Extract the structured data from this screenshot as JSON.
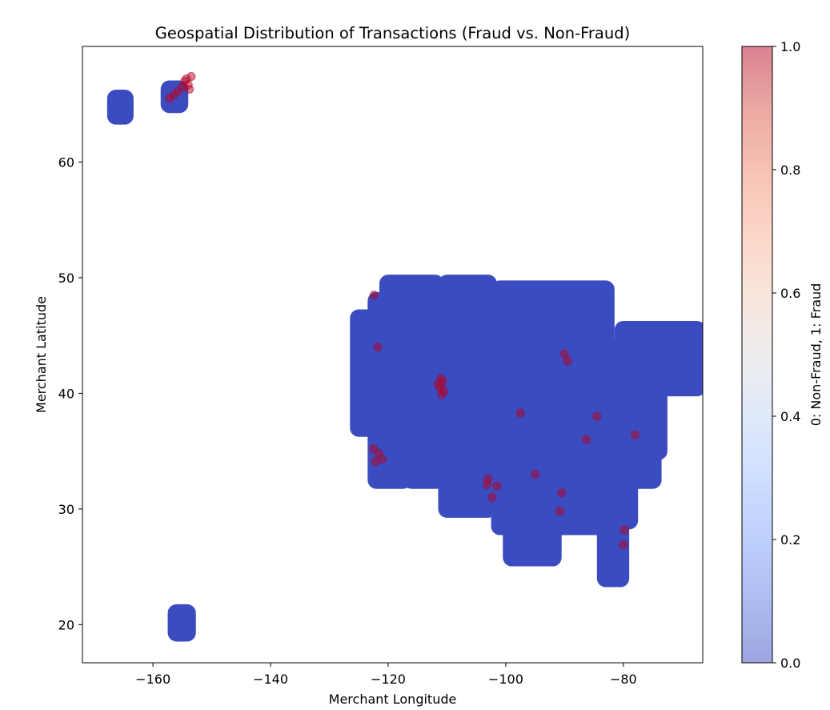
{
  "chart_data": {
    "type": "scatter",
    "title": "Geospatial Distribution of Transactions (Fraud vs. Non-Fraud)",
    "xlabel": "Merchant Longitude",
    "ylabel": "Merchant Latitude",
    "xlim": [
      -172,
      -66.5
    ],
    "ylim": [
      16.7,
      70
    ],
    "xticks": [
      -160,
      -140,
      -120,
      -100,
      -80
    ],
    "xtick_labels": [
      "−160",
      "−140",
      "−120",
      "−100",
      "−80"
    ],
    "yticks": [
      20,
      30,
      40,
      50,
      60
    ],
    "ytick_labels": [
      "20",
      "30",
      "40",
      "50",
      "60"
    ],
    "grid": false,
    "colorbar": {
      "label": "0: Non-Fraud, 1: Fraud",
      "range": [
        0,
        1
      ],
      "ticks": [
        0,
        0.2,
        0.4,
        0.6,
        0.8,
        1.0
      ],
      "tick_labels": [
        "0.0",
        "0.2",
        "0.4",
        "0.6",
        "0.8",
        "1.0"
      ],
      "colormap": "coolwarm",
      "alpha": 0.5
    },
    "colors": {
      "non_fraud": "#3b4cc0",
      "fraud": "#b40426"
    },
    "series": [
      {
        "value": 0,
        "clusters": [
          {
            "lon": [
              -166.3,
              -164.8
            ],
            "lat": [
              64.0,
              65.5
            ]
          },
          {
            "lon": [
              -157.2,
              -155.5
            ],
            "lat": [
              65.0,
              66.3
            ]
          },
          {
            "lon": [
              -156.0,
              -154.2
            ],
            "lat": [
              19.3,
              21.0
            ]
          },
          {
            "lon": [
              -125.0,
              -119.0
            ],
            "lat": [
              37.0,
              46.5
            ]
          },
          {
            "lon": [
              -122.0,
              -117.5
            ],
            "lat": [
              32.5,
              48.0
            ]
          },
          {
            "lon": [
              -120.0,
              -112.0
            ],
            "lat": [
              33.0,
              49.5
            ]
          },
          {
            "lon": [
              -116.0,
              -111.0
            ],
            "lat": [
              32.5,
              45.0
            ]
          },
          {
            "lon": [
              -112.0,
              -106.5
            ],
            "lat": [
              33.5,
              46.0
            ]
          },
          {
            "lon": [
              -110.0,
              -103.0
            ],
            "lat": [
              30.0,
              49.5
            ]
          },
          {
            "lon": [
              -107.5,
              -95.0
            ],
            "lat": [
              31.0,
              47.0
            ]
          },
          {
            "lon": [
              -101.0,
              -83.0
            ],
            "lat": [
              28.5,
              49.0
            ]
          },
          {
            "lon": [
              -99.0,
              -92.0
            ],
            "lat": [
              25.8,
              32.0
            ]
          },
          {
            "lon": [
              -91.0,
              -79.0
            ],
            "lat": [
              29.0,
              43.0
            ]
          },
          {
            "lon": [
              -88.0,
              -75.0
            ],
            "lat": [
              32.5,
              44.0
            ]
          },
          {
            "lon": [
              -83.0,
              -80.5
            ],
            "lat": [
              24.0,
              31.0
            ]
          },
          {
            "lon": [
              -80.0,
              -74.0
            ],
            "lat": [
              35.0,
              45.5
            ]
          },
          {
            "lon": [
              -76.0,
              -67.5
            ],
            "lat": [
              40.5,
              45.5
            ]
          }
        ]
      },
      {
        "value": 1,
        "points": [
          {
            "lon": -154.3,
            "lat": 67.2
          },
          {
            "lon": -153.5,
            "lat": 67.4
          },
          {
            "lon": -154.0,
            "lat": 66.7
          },
          {
            "lon": -155.0,
            "lat": 66.5
          },
          {
            "lon": -153.8,
            "lat": 66.3
          },
          {
            "lon": -156.5,
            "lat": 65.8
          },
          {
            "lon": -157.2,
            "lat": 65.5
          },
          {
            "lon": -155.8,
            "lat": 66.1
          },
          {
            "lon": -154.6,
            "lat": 67.0
          },
          {
            "lon": -110.8,
            "lat": 41.0
          },
          {
            "lon": -111.2,
            "lat": 40.5
          },
          {
            "lon": -110.5,
            "lat": 40.2
          },
          {
            "lon": -111.5,
            "lat": 40.8
          },
          {
            "lon": -110.9,
            "lat": 39.9
          },
          {
            "lon": -111.0,
            "lat": 41.3
          },
          {
            "lon": -122.2,
            "lat": 34.1
          },
          {
            "lon": -121.6,
            "lat": 34.8
          },
          {
            "lon": -121.0,
            "lat": 34.3
          },
          {
            "lon": -122.5,
            "lat": 35.2
          },
          {
            "lon": -122.4,
            "lat": 48.5
          },
          {
            "lon": -121.8,
            "lat": 44.0
          },
          {
            "lon": -103.0,
            "lat": 32.6
          },
          {
            "lon": -101.5,
            "lat": 32.0
          },
          {
            "lon": -102.3,
            "lat": 31.0
          },
          {
            "lon": -103.2,
            "lat": 32.1
          },
          {
            "lon": -90.8,
            "lat": 29.8
          },
          {
            "lon": -90.5,
            "lat": 31.4
          },
          {
            "lon": -79.8,
            "lat": 28.2
          },
          {
            "lon": -80.0,
            "lat": 26.9
          },
          {
            "lon": -78.0,
            "lat": 36.4
          },
          {
            "lon": -84.5,
            "lat": 38.0
          },
          {
            "lon": -90.0,
            "lat": 43.4
          },
          {
            "lon": -89.5,
            "lat": 42.8
          },
          {
            "lon": -97.5,
            "lat": 38.3
          },
          {
            "lon": -86.3,
            "lat": 36.0
          },
          {
            "lon": -95.0,
            "lat": 33.0
          }
        ]
      }
    ]
  }
}
